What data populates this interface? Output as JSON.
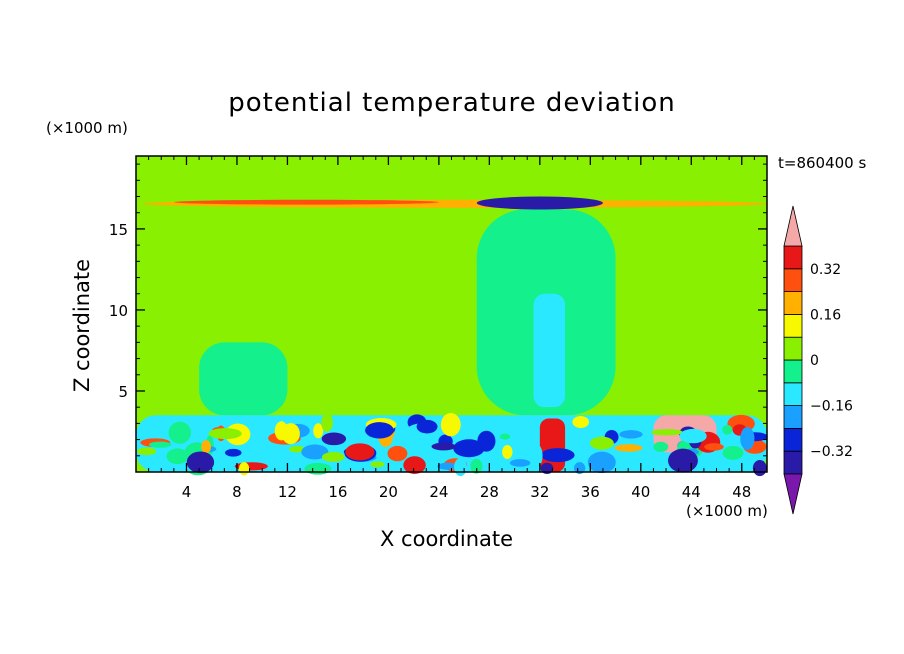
{
  "chart_data": {
    "type": "heatmap",
    "title": "potential temperature deviation",
    "xlabel": "X coordinate",
    "ylabel": "Z coordinate",
    "x_unit": "(×1000 m)",
    "y_unit": "(×1000 m)",
    "time_label": "t=860400 s",
    "xlim": [
      0,
      50
    ],
    "ylim": [
      0,
      19.5
    ],
    "x_ticks": [
      4,
      8,
      12,
      16,
      20,
      24,
      28,
      32,
      36,
      40,
      44,
      48
    ],
    "y_ticks": [
      5,
      10,
      15
    ],
    "colorbar": {
      "levels": [
        -0.4,
        -0.32,
        -0.24,
        -0.16,
        -0.08,
        0,
        0.08,
        0.16,
        0.24,
        0.32,
        0.4
      ],
      "labels": [
        "0.32",
        "0.16",
        "0",
        "−0.16",
        "−0.32"
      ],
      "label_values": [
        0.32,
        0.16,
        0,
        -0.16,
        -0.32
      ],
      "colors_bottom_to_top": [
        "#7a18ac",
        "#2a1aa8",
        "#0a24d8",
        "#1aa0ff",
        "#2ae8ff",
        "#14f08c",
        "#88f000",
        "#f8f800",
        "#ffb000",
        "#ff5010",
        "#e81818",
        "#f4a8a8"
      ]
    },
    "background_value": 0.04,
    "regions": [
      {
        "label": "anvil band warm",
        "x": [
          0.5,
          50
        ],
        "z": [
          16.3,
          16.8
        ],
        "value": 0.18
      },
      {
        "label": "anvil band warm center",
        "x": [
          3,
          24
        ],
        "z": [
          16.5,
          16.8
        ],
        "value": 0.3
      },
      {
        "label": "upper cold cap",
        "x": [
          27,
          37
        ],
        "z": [
          16.2,
          17.0
        ],
        "value": -0.36
      },
      {
        "label": "convective column",
        "x": [
          27,
          38
        ],
        "z": [
          3.5,
          16.2
        ],
        "value": -0.04
      },
      {
        "label": "inner cold column",
        "x": [
          31.5,
          34
        ],
        "z": [
          4,
          11
        ],
        "value": -0.1
      },
      {
        "label": "mid-level cool patch",
        "x": [
          5,
          12
        ],
        "z": [
          3.5,
          8
        ],
        "value": -0.04
      },
      {
        "label": "boundary layer",
        "x": [
          0,
          50
        ],
        "z": [
          0,
          3.5
        ],
        "value": -0.12
      },
      {
        "label": "surface warm cells",
        "x": [
          32,
          34
        ],
        "z": [
          0,
          3.3
        ],
        "value": 0.36
      },
      {
        "label": "pink warm blob",
        "x": [
          41,
          46
        ],
        "z": [
          1.2,
          3.5
        ],
        "value": 0.45
      }
    ]
  }
}
